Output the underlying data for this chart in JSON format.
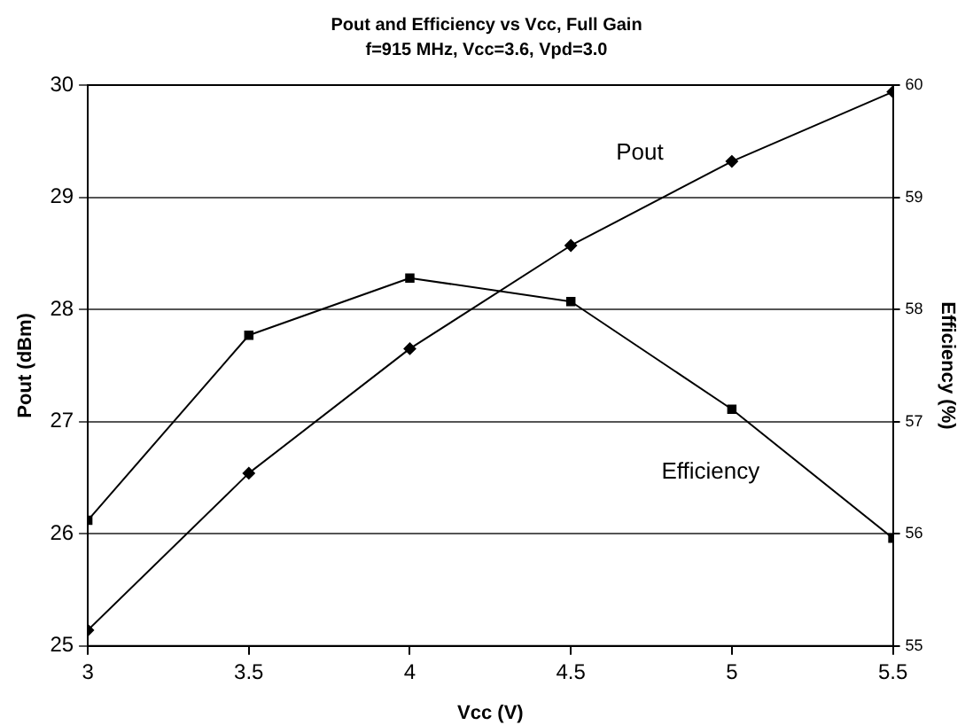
{
  "chart_data": {
    "type": "line",
    "title": "Pout and Efficiency vs Vcc, Full Gain",
    "subtitle": "f=915 MHz, Vcc=3.6, Vpd=3.0",
    "xlabel": "Vcc (V)",
    "ylabel": "Pout (dBm)",
    "y2label": "Efficiency (%)",
    "x": [
      3,
      3.5,
      4,
      4.5,
      5,
      5.5
    ],
    "series": [
      {
        "name": "Pout",
        "color": "#000000",
        "marker": "diamond",
        "values": [
          25.14,
          26.54,
          27.65,
          28.57,
          29.32,
          29.94
        ]
      },
      {
        "name": "Efficiency",
        "color": "#000000",
        "marker": "square",
        "axis": "y2",
        "values": [
          56.12,
          57.77,
          58.28,
          58.07,
          57.11,
          55.96
        ]
      }
    ],
    "xlim": [
      3,
      5.5
    ],
    "xticks": [
      3,
      3.5,
      4,
      4.5,
      5,
      5.5
    ],
    "ylim": [
      25,
      30
    ],
    "yticks": [
      25,
      26,
      27,
      28,
      29,
      30
    ],
    "y2lim": [
      55,
      60
    ],
    "y2ticks": [
      55,
      56,
      57,
      58,
      59,
      60
    ],
    "grid": "y",
    "legend": false,
    "line_style": "solid"
  }
}
